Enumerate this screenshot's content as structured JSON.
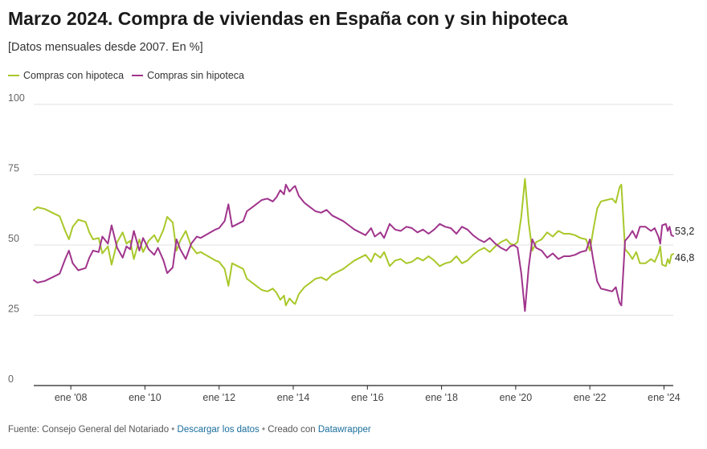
{
  "header": {
    "title": "Marzo 2024. Compra de viviendas en España con y sin hipoteca",
    "subtitle": "[Datos mensuales desde 2007. En %]"
  },
  "footer": {
    "source": "Fuente: Consejo General del Notariado",
    "sep1": " • ",
    "download_link": "Descargar los datos",
    "sep2": " • ",
    "created_with": "Creado con ",
    "datawrapper_link": "Datawrapper"
  },
  "colors": {
    "con": "#a8c82a",
    "sin": "#a0348c",
    "grid": "#e2e2e2",
    "axis": "#222222"
  },
  "chart_data": {
    "type": "line",
    "x_unit": "year",
    "x_range": [
      2007.0,
      2024.25
    ],
    "ylim": [
      0,
      100
    ],
    "y_ticks": [
      0,
      25,
      50,
      75,
      100
    ],
    "x_ticks": [
      {
        "value": 2008,
        "label": "ene '08"
      },
      {
        "value": 2010,
        "label": "ene '10"
      },
      {
        "value": 2012,
        "label": "ene '12"
      },
      {
        "value": 2014,
        "label": "ene '14"
      },
      {
        "value": 2016,
        "label": "ene '16"
      },
      {
        "value": 2018,
        "label": "ene '18"
      },
      {
        "value": 2020,
        "label": "ene '20"
      },
      {
        "value": 2022,
        "label": "ene '22"
      },
      {
        "value": 2024,
        "label": "ene '24"
      }
    ],
    "grid": true,
    "legend_position": "top-left",
    "series": [
      {
        "name": "Compras con hipoteca",
        "color_key": "con",
        "end_label": "46,8",
        "points": [
          [
            2007.0,
            62.5
          ],
          [
            2007.1,
            63.4
          ],
          [
            2007.3,
            62.8
          ],
          [
            2007.5,
            61.5
          ],
          [
            2007.7,
            60.2
          ],
          [
            2007.85,
            55.0
          ],
          [
            2007.95,
            52.0
          ],
          [
            2008.05,
            56.5
          ],
          [
            2008.2,
            59.0
          ],
          [
            2008.4,
            58.2
          ],
          [
            2008.5,
            54.5
          ],
          [
            2008.6,
            52.0
          ],
          [
            2008.75,
            52.5
          ],
          [
            2008.85,
            47.0
          ],
          [
            2009.0,
            49.5
          ],
          [
            2009.1,
            43.0
          ],
          [
            2009.25,
            51.0
          ],
          [
            2009.4,
            54.5
          ],
          [
            2009.5,
            50.5
          ],
          [
            2009.6,
            51.5
          ],
          [
            2009.7,
            45.0
          ],
          [
            2009.85,
            52.0
          ],
          [
            2009.95,
            47.5
          ],
          [
            2010.1,
            51.5
          ],
          [
            2010.25,
            53.5
          ],
          [
            2010.35,
            51.0
          ],
          [
            2010.5,
            55.5
          ],
          [
            2010.6,
            60.0
          ],
          [
            2010.75,
            58.0
          ],
          [
            2010.85,
            48.0
          ],
          [
            2010.95,
            51.5
          ],
          [
            2011.1,
            55.0
          ],
          [
            2011.25,
            49.5
          ],
          [
            2011.4,
            47.0
          ],
          [
            2011.5,
            47.5
          ],
          [
            2011.7,
            46.0
          ],
          [
            2011.9,
            44.5
          ],
          [
            2012.0,
            44.0
          ],
          [
            2012.15,
            41.5
          ],
          [
            2012.25,
            35.5
          ],
          [
            2012.35,
            43.5
          ],
          [
            2012.5,
            42.5
          ],
          [
            2012.65,
            41.5
          ],
          [
            2012.75,
            38.0
          ],
          [
            2012.9,
            36.5
          ],
          [
            2013.0,
            35.5
          ],
          [
            2013.15,
            34.0
          ],
          [
            2013.3,
            33.5
          ],
          [
            2013.45,
            34.5
          ],
          [
            2013.55,
            33.0
          ],
          [
            2013.65,
            30.5
          ],
          [
            2013.75,
            32.0
          ],
          [
            2013.8,
            28.5
          ],
          [
            2013.9,
            31.0
          ],
          [
            2014.0,
            29.5
          ],
          [
            2014.05,
            29.0
          ],
          [
            2014.15,
            32.5
          ],
          [
            2014.3,
            35.0
          ],
          [
            2014.45,
            36.5
          ],
          [
            2014.6,
            38.0
          ],
          [
            2014.75,
            38.5
          ],
          [
            2014.9,
            37.5
          ],
          [
            2015.05,
            39.5
          ],
          [
            2015.2,
            40.5
          ],
          [
            2015.35,
            41.5
          ],
          [
            2015.5,
            43.0
          ],
          [
            2015.65,
            44.5
          ],
          [
            2015.8,
            45.5
          ],
          [
            2015.95,
            46.5
          ],
          [
            2016.1,
            44.0
          ],
          [
            2016.2,
            47.0
          ],
          [
            2016.35,
            45.5
          ],
          [
            2016.45,
            47.5
          ],
          [
            2016.6,
            42.5
          ],
          [
            2016.75,
            44.5
          ],
          [
            2016.9,
            45.0
          ],
          [
            2017.05,
            43.5
          ],
          [
            2017.2,
            44.0
          ],
          [
            2017.35,
            45.5
          ],
          [
            2017.5,
            44.5
          ],
          [
            2017.65,
            46.0
          ],
          [
            2017.8,
            44.5
          ],
          [
            2017.95,
            42.5
          ],
          [
            2018.1,
            43.5
          ],
          [
            2018.25,
            44.0
          ],
          [
            2018.4,
            46.0
          ],
          [
            2018.55,
            43.5
          ],
          [
            2018.7,
            44.5
          ],
          [
            2018.85,
            46.5
          ],
          [
            2019.0,
            48.0
          ],
          [
            2019.15,
            49.0
          ],
          [
            2019.3,
            47.5
          ],
          [
            2019.45,
            49.5
          ],
          [
            2019.6,
            51.0
          ],
          [
            2019.75,
            52.0
          ],
          [
            2019.85,
            50.5
          ],
          [
            2019.95,
            50.0
          ],
          [
            2020.05,
            51.0
          ],
          [
            2020.15,
            60.0
          ],
          [
            2020.25,
            73.5
          ],
          [
            2020.35,
            58.0
          ],
          [
            2020.45,
            48.0
          ],
          [
            2020.55,
            51.0
          ],
          [
            2020.7,
            52.0
          ],
          [
            2020.85,
            54.5
          ],
          [
            2021.0,
            53.0
          ],
          [
            2021.15,
            55.0
          ],
          [
            2021.3,
            54.0
          ],
          [
            2021.45,
            54.0
          ],
          [
            2021.6,
            53.5
          ],
          [
            2021.75,
            52.5
          ],
          [
            2021.9,
            52.0
          ],
          [
            2022.0,
            48.0
          ],
          [
            2022.1,
            56.0
          ],
          [
            2022.2,
            63.0
          ],
          [
            2022.3,
            65.5
          ],
          [
            2022.45,
            66.0
          ],
          [
            2022.6,
            66.5
          ],
          [
            2022.7,
            65.0
          ],
          [
            2022.8,
            70.5
          ],
          [
            2022.85,
            71.5
          ],
          [
            2022.95,
            48.5
          ],
          [
            2023.05,
            47.0
          ],
          [
            2023.15,
            45.0
          ],
          [
            2023.25,
            47.5
          ],
          [
            2023.35,
            43.5
          ],
          [
            2023.5,
            43.5
          ],
          [
            2023.65,
            45.0
          ],
          [
            2023.75,
            44.0
          ],
          [
            2023.85,
            47.0
          ],
          [
            2023.9,
            49.5
          ],
          [
            2023.95,
            43.0
          ],
          [
            2024.05,
            42.5
          ],
          [
            2024.1,
            45.0
          ],
          [
            2024.15,
            43.5
          ],
          [
            2024.2,
            46.5
          ],
          [
            2024.25,
            46.8
          ]
        ]
      },
      {
        "name": "Compras sin hipoteca",
        "color_key": "sin",
        "end_label": "53,2",
        "points": [
          [
            2007.0,
            37.5
          ],
          [
            2007.1,
            36.6
          ],
          [
            2007.3,
            37.2
          ],
          [
            2007.5,
            38.5
          ],
          [
            2007.7,
            39.8
          ],
          [
            2007.85,
            45.0
          ],
          [
            2007.95,
            48.0
          ],
          [
            2008.05,
            43.5
          ],
          [
            2008.2,
            41.0
          ],
          [
            2008.4,
            41.8
          ],
          [
            2008.5,
            45.5
          ],
          [
            2008.6,
            48.0
          ],
          [
            2008.75,
            47.5
          ],
          [
            2008.85,
            53.0
          ],
          [
            2009.0,
            50.5
          ],
          [
            2009.1,
            57.0
          ],
          [
            2009.25,
            49.0
          ],
          [
            2009.4,
            45.5
          ],
          [
            2009.5,
            49.5
          ],
          [
            2009.6,
            48.5
          ],
          [
            2009.7,
            55.0
          ],
          [
            2009.85,
            48.0
          ],
          [
            2009.95,
            52.5
          ],
          [
            2010.1,
            48.5
          ],
          [
            2010.25,
            46.5
          ],
          [
            2010.35,
            49.0
          ],
          [
            2010.5,
            44.5
          ],
          [
            2010.6,
            40.0
          ],
          [
            2010.75,
            42.0
          ],
          [
            2010.85,
            52.0
          ],
          [
            2010.95,
            48.5
          ],
          [
            2011.1,
            45.0
          ],
          [
            2011.25,
            50.5
          ],
          [
            2011.4,
            53.0
          ],
          [
            2011.5,
            52.5
          ],
          [
            2011.7,
            54.0
          ],
          [
            2011.9,
            55.5
          ],
          [
            2012.0,
            56.0
          ],
          [
            2012.15,
            58.5
          ],
          [
            2012.25,
            64.5
          ],
          [
            2012.35,
            56.5
          ],
          [
            2012.5,
            57.5
          ],
          [
            2012.65,
            58.5
          ],
          [
            2012.75,
            62.0
          ],
          [
            2012.9,
            63.5
          ],
          [
            2013.0,
            64.5
          ],
          [
            2013.15,
            66.0
          ],
          [
            2013.3,
            66.5
          ],
          [
            2013.45,
            65.5
          ],
          [
            2013.55,
            67.0
          ],
          [
            2013.65,
            69.5
          ],
          [
            2013.75,
            68.0
          ],
          [
            2013.8,
            71.5
          ],
          [
            2013.9,
            69.0
          ],
          [
            2014.0,
            70.5
          ],
          [
            2014.05,
            71.0
          ],
          [
            2014.15,
            67.5
          ],
          [
            2014.3,
            65.0
          ],
          [
            2014.45,
            63.5
          ],
          [
            2014.6,
            62.0
          ],
          [
            2014.75,
            61.5
          ],
          [
            2014.9,
            62.5
          ],
          [
            2015.05,
            60.5
          ],
          [
            2015.2,
            59.5
          ],
          [
            2015.35,
            58.5
          ],
          [
            2015.5,
            57.0
          ],
          [
            2015.65,
            55.5
          ],
          [
            2015.8,
            54.5
          ],
          [
            2015.95,
            53.5
          ],
          [
            2016.1,
            56.0
          ],
          [
            2016.2,
            53.0
          ],
          [
            2016.35,
            54.5
          ],
          [
            2016.45,
            52.5
          ],
          [
            2016.6,
            57.5
          ],
          [
            2016.75,
            55.5
          ],
          [
            2016.9,
            55.0
          ],
          [
            2017.05,
            56.5
          ],
          [
            2017.2,
            56.0
          ],
          [
            2017.35,
            54.5
          ],
          [
            2017.5,
            55.5
          ],
          [
            2017.65,
            54.0
          ],
          [
            2017.8,
            55.5
          ],
          [
            2017.95,
            57.5
          ],
          [
            2018.1,
            56.5
          ],
          [
            2018.25,
            56.0
          ],
          [
            2018.4,
            54.0
          ],
          [
            2018.55,
            56.5
          ],
          [
            2018.7,
            55.5
          ],
          [
            2018.85,
            53.5
          ],
          [
            2019.0,
            52.0
          ],
          [
            2019.15,
            51.0
          ],
          [
            2019.3,
            52.5
          ],
          [
            2019.45,
            50.5
          ],
          [
            2019.6,
            49.0
          ],
          [
            2019.75,
            48.0
          ],
          [
            2019.85,
            49.5
          ],
          [
            2019.95,
            50.0
          ],
          [
            2020.05,
            49.0
          ],
          [
            2020.15,
            40.0
          ],
          [
            2020.25,
            26.5
          ],
          [
            2020.35,
            42.0
          ],
          [
            2020.45,
            52.0
          ],
          [
            2020.55,
            49.0
          ],
          [
            2020.7,
            48.0
          ],
          [
            2020.85,
            45.5
          ],
          [
            2021.0,
            47.0
          ],
          [
            2021.15,
            45.0
          ],
          [
            2021.3,
            46.0
          ],
          [
            2021.45,
            46.0
          ],
          [
            2021.6,
            46.5
          ],
          [
            2021.75,
            47.5
          ],
          [
            2021.9,
            48.0
          ],
          [
            2022.0,
            52.0
          ],
          [
            2022.1,
            44.0
          ],
          [
            2022.2,
            37.0
          ],
          [
            2022.3,
            34.5
          ],
          [
            2022.45,
            34.0
          ],
          [
            2022.6,
            33.5
          ],
          [
            2022.7,
            35.0
          ],
          [
            2022.8,
            29.5
          ],
          [
            2022.85,
            28.5
          ],
          [
            2022.95,
            51.5
          ],
          [
            2023.05,
            53.0
          ],
          [
            2023.15,
            55.0
          ],
          [
            2023.25,
            52.5
          ],
          [
            2023.35,
            56.5
          ],
          [
            2023.5,
            56.5
          ],
          [
            2023.65,
            55.0
          ],
          [
            2023.75,
            56.0
          ],
          [
            2023.85,
            53.0
          ],
          [
            2023.9,
            50.5
          ],
          [
            2023.95,
            57.0
          ],
          [
            2024.05,
            57.5
          ],
          [
            2024.1,
            55.0
          ],
          [
            2024.15,
            56.5
          ],
          [
            2024.2,
            53.5
          ],
          [
            2024.25,
            53.2
          ]
        ]
      }
    ]
  }
}
